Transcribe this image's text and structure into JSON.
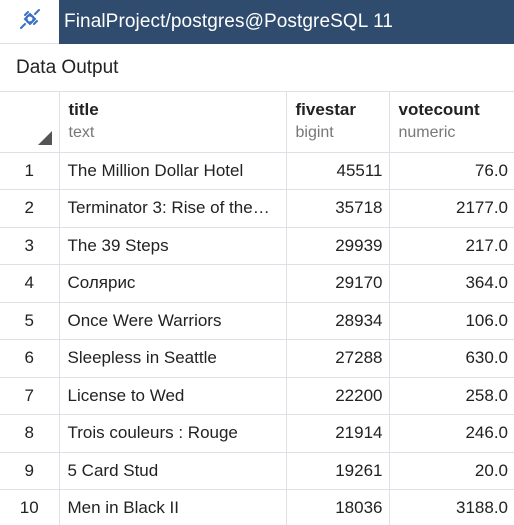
{
  "connection": {
    "icon": "connection-plug-icon",
    "title": "FinalProject/postgres@PostgreSQL 11",
    "bar_color": "#2f4c6e"
  },
  "panel": {
    "title": "Data Output"
  },
  "columns": [
    {
      "name": "title",
      "type": "text"
    },
    {
      "name": "fivestar",
      "type": "bigint"
    },
    {
      "name": "votecount",
      "type": "numeric"
    }
  ],
  "rows": [
    {
      "num": "1",
      "title": "The Million Dollar Hotel",
      "fivestar": "45511",
      "votecount": "76.0"
    },
    {
      "num": "2",
      "title": "Terminator 3: Rise of the…",
      "fivestar": "35718",
      "votecount": "2177.0"
    },
    {
      "num": "3",
      "title": "The 39 Steps",
      "fivestar": "29939",
      "votecount": "217.0"
    },
    {
      "num": "4",
      "title": "Солярис",
      "fivestar": "29170",
      "votecount": "364.0"
    },
    {
      "num": "5",
      "title": "Once Were Warriors",
      "fivestar": "28934",
      "votecount": "106.0"
    },
    {
      "num": "6",
      "title": "Sleepless in Seattle",
      "fivestar": "27288",
      "votecount": "630.0"
    },
    {
      "num": "7",
      "title": "License to Wed",
      "fivestar": "22200",
      "votecount": "258.0"
    },
    {
      "num": "8",
      "title": "Trois couleurs : Rouge",
      "fivestar": "21914",
      "votecount": "246.0"
    },
    {
      "num": "9",
      "title": "5 Card Stud",
      "fivestar": "19261",
      "votecount": "20.0"
    },
    {
      "num": "10",
      "title": "Men in Black II",
      "fivestar": "18036",
      "votecount": "3188.0"
    }
  ]
}
